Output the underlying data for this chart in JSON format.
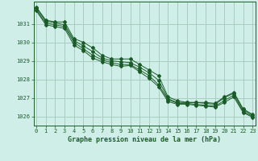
{
  "background_color": "#d0eee8",
  "grid_color": "#a8ccc0",
  "line_color": "#1a5c28",
  "title": "Graphe pression niveau de la mer (hPa)",
  "xlim": [
    -0.3,
    23.3
  ],
  "ylim": [
    1025.5,
    1032.2
  ],
  "yticks": [
    1026,
    1027,
    1028,
    1029,
    1030,
    1031
  ],
  "xticks": [
    0,
    1,
    2,
    3,
    4,
    5,
    6,
    7,
    8,
    9,
    10,
    11,
    12,
    13,
    14,
    15,
    16,
    17,
    18,
    19,
    20,
    21,
    22,
    23
  ],
  "series": [
    {
      "x": [
        0,
        1,
        2,
        3,
        4,
        5,
        6,
        7,
        8,
        9,
        10,
        11,
        12,
        13,
        14,
        15,
        16,
        17,
        18,
        19,
        20,
        21,
        22,
        23
      ],
      "y": [
        1031.9,
        1031.2,
        1031.1,
        1031.1,
        1030.2,
        1030.0,
        1029.7,
        1029.3,
        1029.1,
        1029.1,
        1029.1,
        1028.8,
        1028.5,
        1028.2,
        1027.05,
        1026.85,
        1026.75,
        1026.75,
        1026.75,
        1026.7,
        1027.05,
        1027.3,
        1026.4,
        1026.1
      ]
    },
    {
      "x": [
        0,
        1,
        2,
        3,
        4,
        5,
        6,
        7,
        8,
        9,
        10,
        11,
        12,
        13,
        14,
        15,
        16,
        17,
        18,
        19,
        20,
        21,
        22,
        23
      ],
      "y": [
        1031.85,
        1031.15,
        1031.05,
        1030.95,
        1030.1,
        1029.8,
        1029.5,
        1029.15,
        1029.0,
        1028.95,
        1028.9,
        1028.65,
        1028.35,
        1027.95,
        1026.95,
        1026.75,
        1026.75,
        1026.75,
        1026.7,
        1026.65,
        1027.0,
        1027.25,
        1026.35,
        1026.05
      ]
    },
    {
      "x": [
        0,
        1,
        2,
        3,
        4,
        5,
        6,
        7,
        8,
        9,
        10,
        11,
        12,
        13,
        14,
        15,
        16,
        17,
        18,
        19,
        20,
        21,
        22,
        23
      ],
      "y": [
        1031.75,
        1031.05,
        1030.95,
        1030.85,
        1030.0,
        1029.65,
        1029.3,
        1029.05,
        1028.9,
        1028.8,
        1028.8,
        1028.5,
        1028.2,
        1027.7,
        1026.9,
        1026.7,
        1026.7,
        1026.65,
        1026.6,
        1026.55,
        1026.85,
        1027.15,
        1026.25,
        1026.0
      ]
    },
    {
      "x": [
        0,
        1,
        2,
        3,
        4,
        5,
        6,
        7,
        8,
        9,
        10,
        11,
        12,
        13,
        14,
        15,
        16,
        17,
        18,
        19,
        20,
        21,
        22,
        23
      ],
      "y": [
        1031.7,
        1030.95,
        1030.85,
        1030.75,
        1029.85,
        1029.55,
        1029.15,
        1028.95,
        1028.8,
        1028.7,
        1028.75,
        1028.4,
        1028.05,
        1027.6,
        1026.8,
        1026.65,
        1026.65,
        1026.6,
        1026.55,
        1026.5,
        1026.75,
        1027.05,
        1026.2,
        1025.95
      ]
    }
  ]
}
